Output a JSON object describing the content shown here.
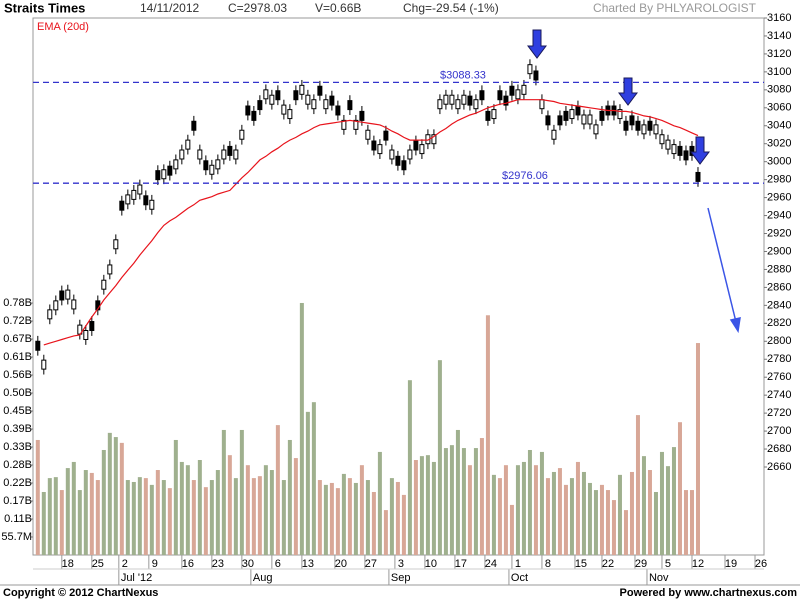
{
  "header": {
    "title": "Straits Times",
    "date": "14/11/2012",
    "close": "C=2978.03",
    "volume": "V=0.66B",
    "change": "Chg=-29.54 (-1%)",
    "credit": "Charted By PHLYAROLOGIST"
  },
  "footer": {
    "copyright": "Copyright © 2012 ChartNexus",
    "powered": "Powered by www.chartnexus.com"
  },
  "chart_data": {
    "type": "candlestick",
    "open": [
      2800,
      2769,
      2825,
      2835,
      2856,
      2847,
      2836,
      2808,
      2802,
      2822,
      2845,
      2858,
      2875,
      2903,
      2956,
      2953,
      2958,
      2964,
      2962,
      2947,
      2990,
      2981,
      2995,
      2992,
      3003,
      3014,
      3045,
      3003,
      3001,
      2986,
      2992,
      3003,
      3017,
      3003,
      3025,
      3062,
      3056,
      3068,
      3070,
      3064,
      3079,
      3053,
      3048,
      3079,
      3075,
      3064,
      3059,
      3084,
      3059,
      3073,
      3062,
      3036,
      3068,
      3036,
      3056,
      3025,
      3023,
      3009,
      3034,
      3003,
      3006,
      3001,
      3003,
      3023,
      3009,
      3020,
      3020,
      3059,
      3064,
      3064,
      3059,
      3064,
      3073,
      3059,
      3079,
      3056,
      3048,
      3079,
      3073,
      3084,
      3070,
      3075,
      3098,
      3101,
      3059,
      3051,
      3025,
      3051,
      3056,
      3048,
      3062,
      3042,
      3042,
      3031,
      3056,
      3062,
      3062,
      3048,
      3045,
      3051,
      3045,
      3031,
      3045,
      3031,
      3020,
      3014,
      3009,
      3017,
      3012,
      3017,
      2988
    ],
    "high": [
      2806,
      2785,
      2841,
      2851,
      2862,
      2863,
      2852,
      2824,
      2818,
      2828,
      2851,
      2874,
      2891,
      2919,
      2962,
      2969,
      2974,
      2980,
      2968,
      2963,
      2996,
      2997,
      3001,
      3008,
      3019,
      3030,
      3051,
      3019,
      3007,
      3002,
      3008,
      3019,
      3023,
      3019,
      3041,
      3068,
      3062,
      3074,
      3086,
      3080,
      3085,
      3069,
      3064,
      3085,
      3091,
      3080,
      3075,
      3090,
      3075,
      3079,
      3068,
      3052,
      3074,
      3052,
      3062,
      3041,
      3029,
      3025,
      3040,
      3019,
      3012,
      3007,
      3019,
      3029,
      3025,
      3036,
      3036,
      3075,
      3080,
      3080,
      3075,
      3080,
      3079,
      3075,
      3085,
      3062,
      3064,
      3085,
      3079,
      3090,
      3086,
      3091,
      3114,
      3107,
      3075,
      3057,
      3041,
      3057,
      3062,
      3064,
      3068,
      3058,
      3058,
      3047,
      3062,
      3068,
      3068,
      3064,
      3051,
      3057,
      3051,
      3047,
      3051,
      3047,
      3036,
      3030,
      3025,
      3023,
      3018,
      3023,
      2994
    ],
    "low": [
      2784,
      2763,
      2819,
      2829,
      2840,
      2841,
      2830,
      2802,
      2796,
      2806,
      2829,
      2852,
      2869,
      2897,
      2940,
      2947,
      2952,
      2958,
      2946,
      2941,
      2974,
      2975,
      2979,
      2986,
      2997,
      3008,
      3029,
      2997,
      2985,
      2980,
      2986,
      2997,
      3001,
      2997,
      3019,
      3046,
      3040,
      3052,
      3064,
      3058,
      3063,
      3047,
      3042,
      3063,
      3069,
      3058,
      3053,
      3068,
      3053,
      3057,
      3046,
      3030,
      3052,
      3030,
      3040,
      3019,
      3007,
      3003,
      3018,
      2997,
      2990,
      2985,
      2997,
      3007,
      3003,
      3014,
      3014,
      3053,
      3058,
      3058,
      3053,
      3058,
      3057,
      3053,
      3063,
      3040,
      3042,
      3063,
      3057,
      3068,
      3064,
      3069,
      3092,
      3085,
      3053,
      3035,
      3019,
      3035,
      3040,
      3042,
      3046,
      3036,
      3036,
      3025,
      3040,
      3046,
      3046,
      3042,
      3029,
      3035,
      3029,
      3025,
      3029,
      3025,
      3014,
      3008,
      3003,
      3001,
      2996,
      3001,
      2972
    ],
    "close": [
      2790,
      2779,
      2835,
      2845,
      2846,
      2857,
      2846,
      2818,
      2812,
      2812,
      2835,
      2868,
      2885,
      2913,
      2946,
      2963,
      2968,
      2974,
      2952,
      2957,
      2980,
      2991,
      2985,
      3002,
      3013,
      3024,
      3035,
      3013,
      2991,
      2996,
      3002,
      3013,
      3007,
      3013,
      3035,
      3052,
      3046,
      3058,
      3080,
      3074,
      3069,
      3063,
      3058,
      3069,
      3085,
      3074,
      3069,
      3074,
      3069,
      3063,
      3052,
      3046,
      3058,
      3046,
      3046,
      3035,
      3013,
      3019,
      3024,
      3013,
      2996,
      2991,
      3013,
      3013,
      3019,
      3030,
      3030,
      3069,
      3074,
      3074,
      3069,
      3074,
      3063,
      3069,
      3069,
      3046,
      3058,
      3069,
      3063,
      3074,
      3080,
      3085,
      3108,
      3091,
      3069,
      3041,
      3035,
      3041,
      3046,
      3058,
      3052,
      3052,
      3052,
      3041,
      3046,
      3052,
      3052,
      3058,
      3035,
      3041,
      3035,
      3041,
      3035,
      3041,
      3030,
      3024,
      3019,
      3007,
      3002,
      3007,
      2978.03
    ],
    "up_color": "#ffffff",
    "down_color": "#000000",
    "ylim": [
      2562,
      3160
    ],
    "yticks": [
      2660,
      2680,
      2700,
      2720,
      2740,
      2760,
      2780,
      2800,
      2820,
      2840,
      2860,
      2880,
      2900,
      2920,
      2940,
      2960,
      2980,
      3000,
      3020,
      3040,
      3060,
      3080,
      3100,
      3120,
      3140,
      3160
    ],
    "xlim": [
      -0.8,
      121
    ],
    "xticks": [
      {
        "value": 4,
        "label": "18"
      },
      {
        "value": 9,
        "label": "25"
      },
      {
        "value": 13.5,
        "label": "2"
      },
      {
        "value": 18.5,
        "label": "9"
      },
      {
        "value": 24,
        "label": "16"
      },
      {
        "value": 29,
        "label": "23"
      },
      {
        "value": 34,
        "label": "30"
      },
      {
        "value": 39,
        "label": "6"
      },
      {
        "value": 44,
        "label": "13"
      },
      {
        "value": 49.5,
        "label": "20"
      },
      {
        "value": 54.5,
        "label": "27"
      },
      {
        "value": 59.5,
        "label": "3"
      },
      {
        "value": 64.5,
        "label": "10"
      },
      {
        "value": 69.5,
        "label": "17"
      },
      {
        "value": 74.5,
        "label": "24"
      },
      {
        "value": 79,
        "label": "1"
      },
      {
        "value": 84,
        "label": "8"
      },
      {
        "value": 89.5,
        "label": "15"
      },
      {
        "value": 94,
        "label": "22"
      },
      {
        "value": 99.5,
        "label": "29"
      },
      {
        "value": 104,
        "label": "5"
      },
      {
        "value": 109,
        "label": "12"
      },
      {
        "value": 114.5,
        "label": "19"
      },
      {
        "value": 119.5,
        "label": "26"
      }
    ],
    "months": [
      {
        "value": 13.5,
        "label": "Jul '12"
      },
      {
        "value": 35.5,
        "label": "Aug"
      },
      {
        "value": 58.5,
        "label": "Sep"
      },
      {
        "value": 78.5,
        "label": "Oct"
      },
      {
        "value": 101.5,
        "label": "Nov"
      }
    ],
    "ema": {
      "name": "EMA (20d)",
      "color": "#e8141c",
      "values": [
        null,
        2796,
        2798,
        2800,
        2802,
        2804,
        2806,
        2807,
        2817,
        2827,
        2836,
        2846,
        2854,
        2862,
        2871,
        2879,
        2887,
        2896,
        2904,
        2912,
        2921,
        2929,
        2934,
        2938,
        2943,
        2948,
        2952,
        2957,
        2959,
        2961,
        2964,
        2966,
        2968,
        2975,
        2982,
        2988,
        2995,
        3002,
        3006,
        3011,
        3015,
        3020,
        3024,
        3027,
        3031,
        3034,
        3038,
        3041,
        3042,
        3043,
        3044,
        3045,
        3046,
        3045,
        3044,
        3043,
        3042,
        3041,
        3038,
        3034,
        3031,
        3027,
        3024,
        3024,
        3024,
        3024,
        3028,
        3033,
        3037,
        3042,
        3046,
        3049,
        3052,
        3054,
        3057,
        3060,
        3062,
        3064,
        3065,
        3067,
        3069,
        3069,
        3069,
        3069,
        3069,
        3068,
        3067,
        3065,
        3064,
        3063,
        3062,
        3061,
        3060,
        3059,
        3058,
        3057,
        3057,
        3056,
        3056,
        3055,
        3053,
        3051,
        3050,
        3048,
        3046,
        3043,
        3040,
        3038,
        3035,
        3032,
        3029
      ]
    },
    "volume": {
      "values": [
        356,
        195,
        238,
        241,
        201,
        269,
        288,
        201,
        263,
        254,
        232,
        325,
        378,
        365,
        347,
        232,
        226,
        241,
        238,
        217,
        263,
        232,
        207,
        356,
        288,
        278,
        232,
        294,
        210,
        232,
        263,
        387,
        309,
        238,
        387,
        278,
        238,
        244,
        278,
        263,
        402,
        232,
        356,
        300,
        780,
        443,
        473,
        232,
        217,
        223,
        207,
        251,
        238,
        223,
        278,
        232,
        195,
        319,
        139,
        238,
        226,
        186,
        541,
        294,
        306,
        309,
        288,
        603,
        331,
        340,
        387,
        331,
        278,
        331,
        362,
        742,
        248,
        238,
        278,
        155,
        278,
        288,
        325,
        278,
        319,
        238,
        257,
        269,
        217,
        238,
        288,
        257,
        223,
        201,
        217,
        201,
        170,
        248,
        139,
        257,
        433,
        306,
        263,
        195,
        319,
        275,
        334,
        411,
        201,
        201,
        656
      ],
      "up_color": "#9fb08e",
      "down_color": "#d8a797",
      "ylim": [
        0,
        1662
      ],
      "yticks": [
        {
          "value": 55.7,
          "label": "55.7M"
        },
        {
          "value": 111.4,
          "label": "0.11B"
        },
        {
          "value": 167.1,
          "label": "0.17B"
        },
        {
          "value": 222.8,
          "label": "0.22B"
        },
        {
          "value": 278.5,
          "label": "0.28B"
        },
        {
          "value": 334.2,
          "label": "0.33B"
        },
        {
          "value": 389.9,
          "label": "0.39B"
        },
        {
          "value": 445.6,
          "label": "0.45B"
        },
        {
          "value": 501.3,
          "label": "0.50B"
        },
        {
          "value": 557,
          "label": "0.56B"
        },
        {
          "value": 612.7,
          "label": "0.61B"
        },
        {
          "value": 668.4,
          "label": "0.67B"
        },
        {
          "value": 724.1,
          "label": "0.72B"
        },
        {
          "value": 779.8,
          "label": "0.78B"
        }
      ]
    },
    "levels": [
      {
        "value": 3088.33,
        "label": "$3088.33"
      },
      {
        "value": 2976.06,
        "label": "$2976.06"
      }
    ],
    "level_color": "#3333cc"
  }
}
